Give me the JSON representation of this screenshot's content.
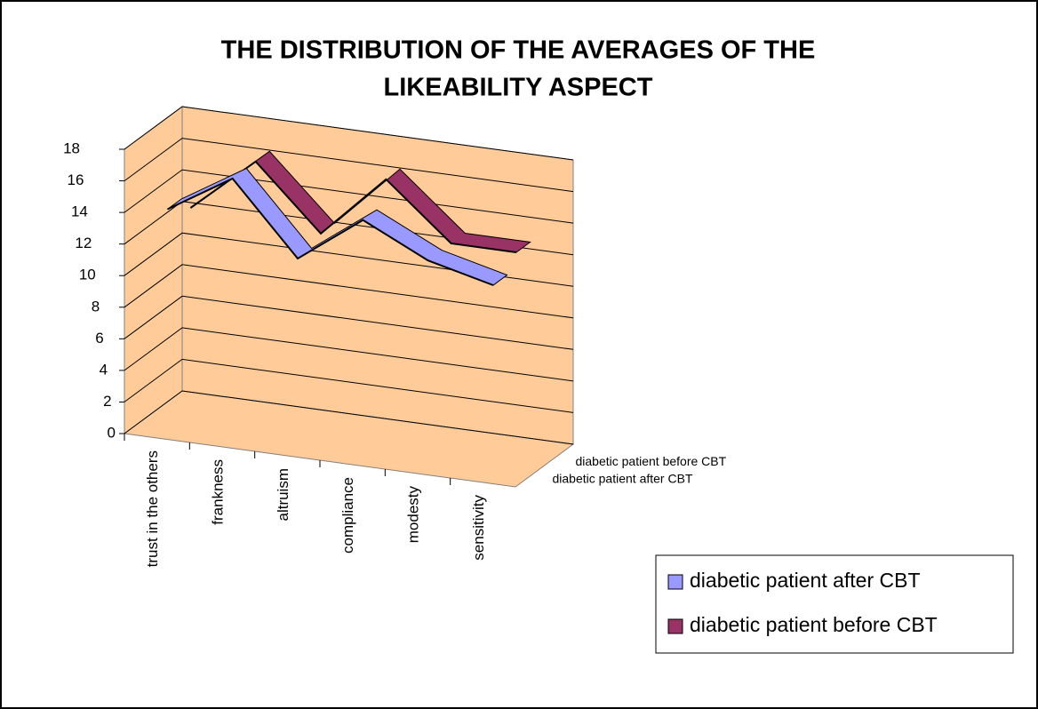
{
  "chart_data": {
    "type": "line3d",
    "title": "THE DISTRIBUTION OF THE AVERAGES OF THE LIKEABILITY ASPECT",
    "categories": [
      "trust in the others",
      "frankness",
      "altruism",
      "compliance",
      "modesty",
      "sensitivity"
    ],
    "series": [
      {
        "name": "diabetic patient after CBT",
        "color": "#9999ff",
        "values": [
          14,
          16.5,
          12,
          15,
          13,
          12
        ]
      },
      {
        "name": "diabetic patient before CBT",
        "color": "#993366",
        "values": [
          13,
          16.5,
          12.5,
          16.5,
          13,
          13
        ]
      }
    ],
    "ylim": [
      0,
      18
    ],
    "yticks": [
      0,
      2,
      4,
      6,
      8,
      10,
      12,
      14,
      16,
      18
    ],
    "grid": true,
    "legend": "bottom-right",
    "wall_color": "#ffcc99"
  }
}
